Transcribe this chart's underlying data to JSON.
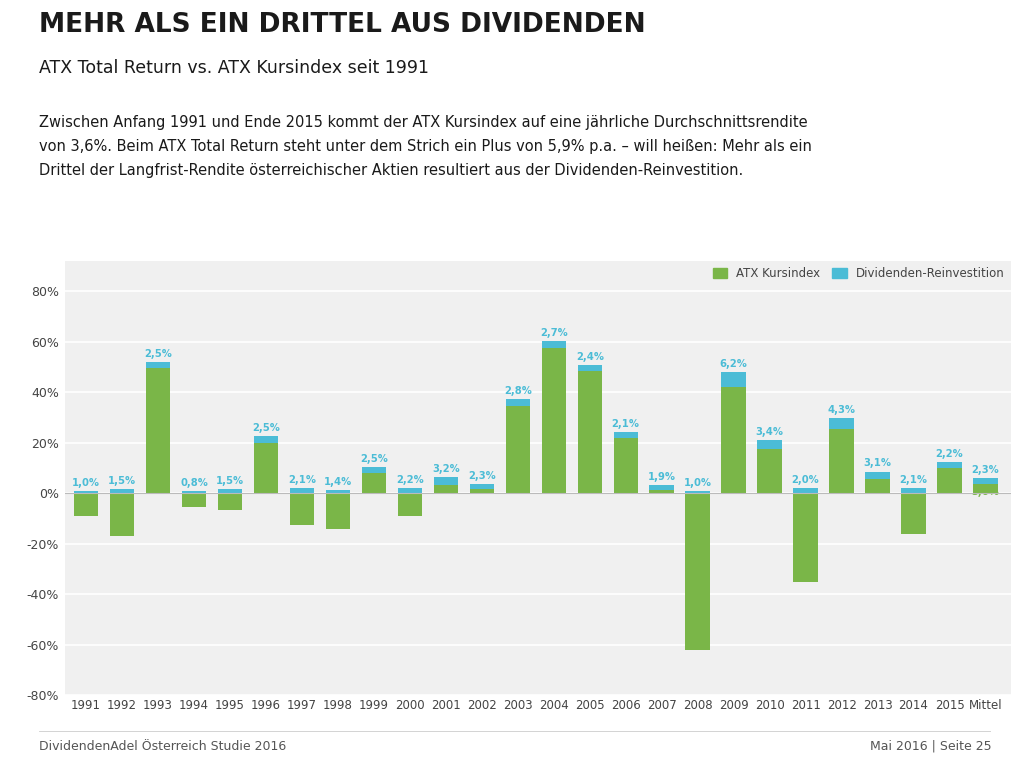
{
  "years": [
    "1991",
    "1992",
    "1993",
    "1994",
    "1995",
    "1996",
    "1997",
    "1998",
    "1999",
    "2000",
    "2001",
    "2002",
    "2003",
    "2004",
    "2005",
    "2006",
    "2007",
    "2008",
    "2009",
    "2010",
    "2011",
    "2012",
    "2013",
    "2014",
    "2015",
    "Mittel"
  ],
  "kursindex": [
    -9.0,
    -17.0,
    49.5,
    -5.5,
    -6.5,
    20.0,
    -12.5,
    -14.0,
    8.0,
    -9.0,
    3.2,
    1.5,
    34.5,
    57.5,
    48.5,
    22.0,
    1.2,
    -62.0,
    42.0,
    17.5,
    -35.0,
    25.5,
    5.5,
    -16.0,
    10.0,
    3.6
  ],
  "dividenden": [
    1.0,
    1.5,
    2.5,
    0.8,
    1.5,
    2.5,
    2.1,
    1.4,
    2.5,
    2.2,
    3.2,
    2.3,
    2.8,
    2.7,
    2.4,
    2.1,
    1.9,
    1.0,
    6.2,
    3.4,
    2.0,
    4.3,
    3.1,
    2.1,
    2.2,
    2.3
  ],
  "green_color": "#7AB648",
  "blue_color": "#4BBCD6",
  "title_bold": "MEHR ALS EIN DRITTEL AUS DIVIDENDEN",
  "title_sub": "ATX Total Return vs. ATX Kursindex seit 1991",
  "body_text": "Zwischen Anfang 1991 und Ende 2015 kommt der ATX Kursindex auf eine jährliche Durchschnittsrendite\nvon 3,6%. Beim ATX Total Return steht unter dem Strich ein Plus von 5,9% p.a. – will heißen: Mehr als ein\nDrittel der Langfrist-Rendite österreichischer Aktien resultiert aus der Dividenden-Reinvestition.",
  "legend_green": "ATX Kursindex",
  "legend_blue": "Dividenden-Reinvestition",
  "footer_left": "DividendenAdel Österreich Studie 2016",
  "footer_right": "Mai 2016 | Seite 25",
  "bg_chart": "#F0F0F0",
  "bg_page": "#FFFFFF",
  "ylim": [
    -0.8,
    0.8
  ],
  "yticks": [
    -0.8,
    -0.6,
    -0.4,
    -0.2,
    0.0,
    0.2,
    0.4,
    0.6,
    0.8
  ]
}
